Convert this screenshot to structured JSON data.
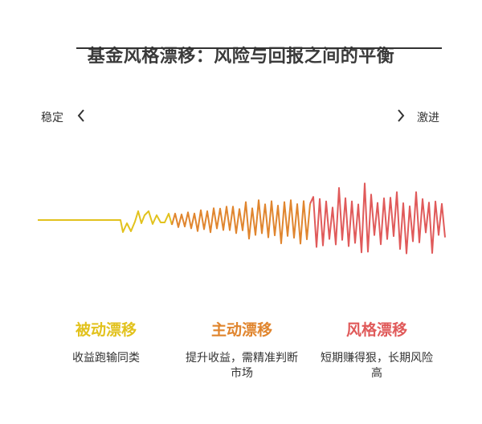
{
  "title": "基金风格漂移：风险与回报之间的平衡",
  "scale": {
    "left_label": "稳定",
    "right_label": "激进"
  },
  "colors": {
    "passive": "#e2c21d",
    "active": "#e0852e",
    "style": "#e05a5a",
    "text": "#333333"
  },
  "icons": {
    "left": "chevron-left-icon",
    "right": "chevron-right-icon"
  },
  "categories": [
    {
      "name": "被动漂移",
      "desc": "收益跑输同类",
      "color": "#e2c21d"
    },
    {
      "name": "主动漂移",
      "desc": "提升收益，需精准判断市场",
      "color": "#e0852e"
    },
    {
      "name": "风格漂移",
      "desc": "短期赚得狠，长期风险高",
      "color": "#e05a5a"
    }
  ]
}
